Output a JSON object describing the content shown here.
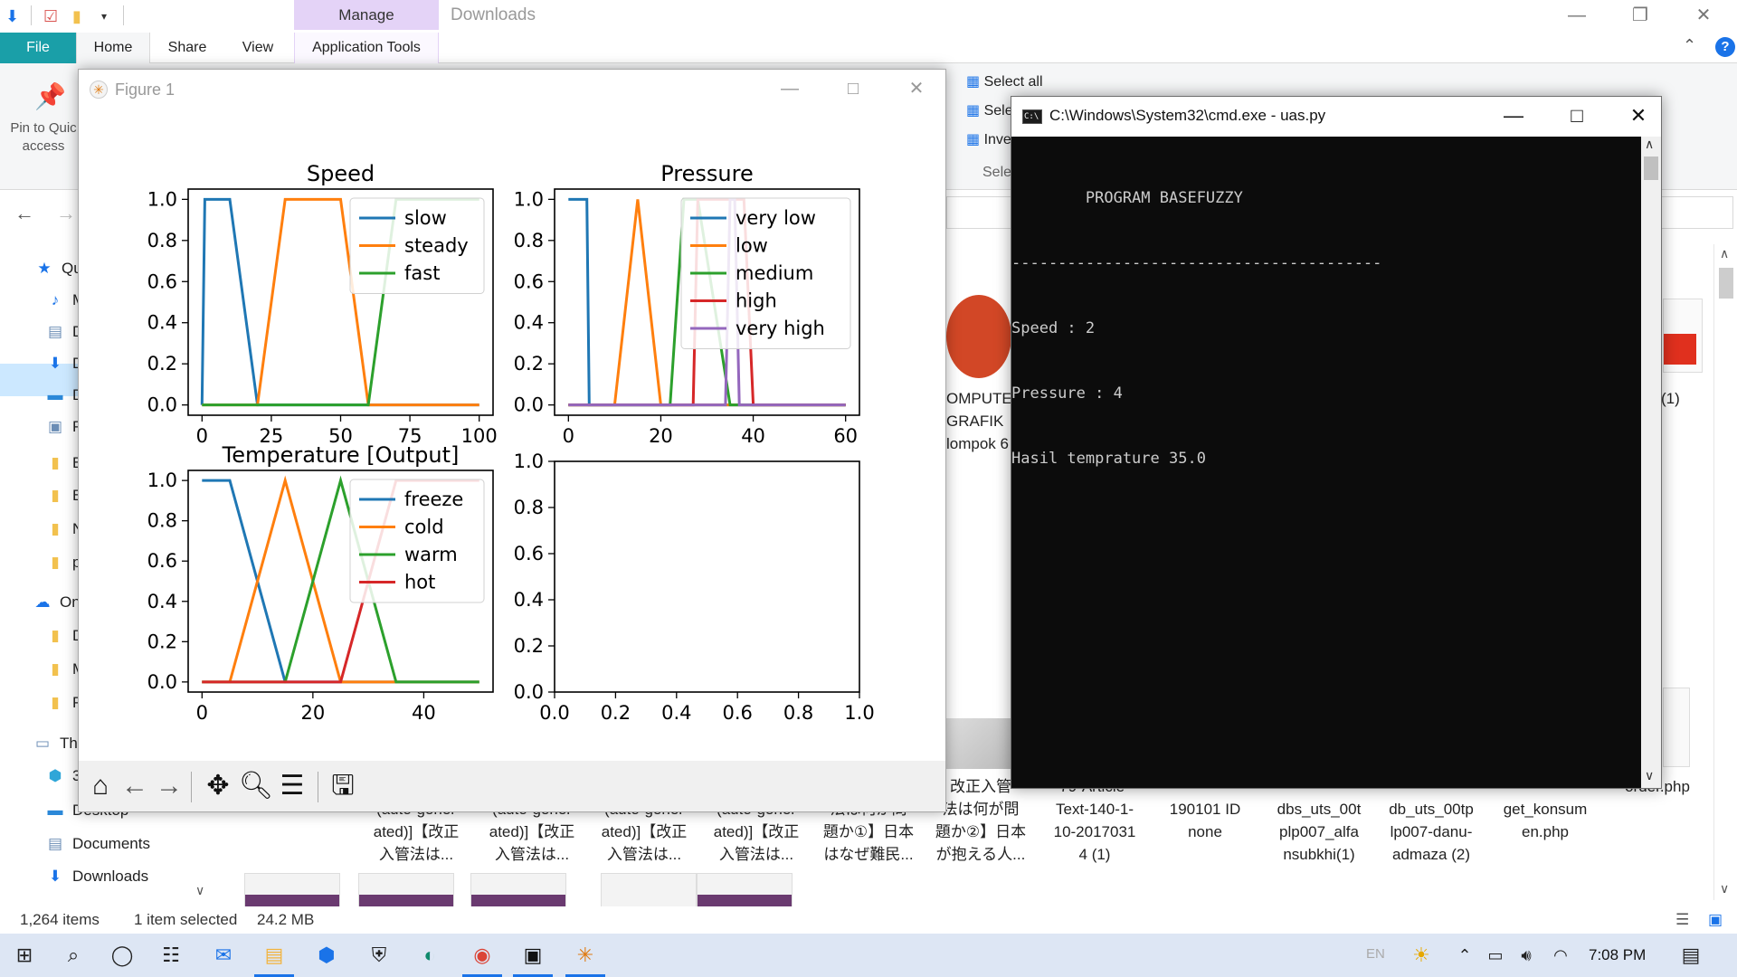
{
  "explorer": {
    "title": "Downloads",
    "manage_tab": "Manage",
    "tabs": [
      "File",
      "Home",
      "Share",
      "View",
      "Application Tools"
    ],
    "pin_label": "Pin to Quick access",
    "pin_line1": "Pin to Quic",
    "pin_line2": "access",
    "select_items": [
      "Select all",
      "Select n",
      "Invert s",
      "Selec"
    ],
    "nav_items": [
      {
        "icon": "star-icon",
        "label": "Qu"
      },
      {
        "icon": "music-icon",
        "label": "M"
      },
      {
        "icon": "document-icon",
        "label": "D"
      },
      {
        "icon": "download-icon",
        "label": "D"
      },
      {
        "icon": "desktop-icon",
        "label": "D"
      },
      {
        "icon": "picture-icon",
        "label": "P"
      },
      {
        "icon": "folder-icon",
        "label": "B"
      },
      {
        "icon": "folder-icon",
        "label": "B"
      },
      {
        "icon": "folder-icon",
        "label": "N"
      },
      {
        "icon": "folder-icon",
        "label": "p"
      },
      {
        "icon": "cloud-icon",
        "label": "On"
      },
      {
        "icon": "folder-icon",
        "label": "D"
      },
      {
        "icon": "folder-icon",
        "label": "M"
      },
      {
        "icon": "folder-icon",
        "label": "P"
      },
      {
        "icon": "computer-icon",
        "label": "Thi"
      },
      {
        "icon": "cube-icon",
        "label": "3"
      },
      {
        "icon": "desktop-icon",
        "label": "Desktop"
      },
      {
        "icon": "document-icon",
        "label": "Documents"
      },
      {
        "icon": "download-icon",
        "label": "Downloads"
      }
    ],
    "files_top": [
      {
        "lines": [
          "OMPUTER",
          "GRAFIK",
          "lompok 6"
        ]
      },
      {
        "lines": [
          "(1)"
        ]
      }
    ],
    "files_bottom": [
      {
        "lines": [
          "(auto-gener",
          "ated)]【改正",
          "入管法は..."
        ]
      },
      {
        "lines": [
          "(auto-gener",
          "ated)]【改正",
          "入管法は..."
        ]
      },
      {
        "lines": [
          "(auto-gener",
          "ated)]【改正",
          "入管法は..."
        ]
      },
      {
        "lines": [
          "(auto-gener",
          "ated)]【改正",
          "入管法は..."
        ]
      },
      {
        "lines": [
          "法は何が問",
          "題か①】日本",
          "はなぜ難民..."
        ]
      },
      {
        "lines": [
          "改正入管",
          "法は何が問",
          "題か②】日本",
          "が抱える人..."
        ]
      },
      {
        "lines": [
          "79-Article-",
          "Text-140-1-",
          "10-2017031",
          "4 (1)"
        ]
      },
      {
        "lines": [
          "190101 ID",
          "none"
        ]
      },
      {
        "lines": [
          "dbs_uts_00t",
          "plp007_alfa",
          "nsubkhi(1)"
        ]
      },
      {
        "lines": [
          "db_uts_00tp",
          "lp007-danu-",
          "admaza (2)"
        ]
      },
      {
        "lines": [
          "get_konsum",
          "en.php"
        ]
      },
      {
        "lines": [
          "order.php"
        ]
      }
    ],
    "status": {
      "items": "1,264 items",
      "selected": "1 item selected",
      "size": "24.2 MB"
    }
  },
  "figure": {
    "window_title": "Figure 1",
    "toolbar": [
      "home-icon",
      "back-icon",
      "forward-icon",
      "pan-icon",
      "zoom-icon",
      "configure-icon",
      "save-icon"
    ]
  },
  "chart_data": [
    {
      "type": "line",
      "title": "Speed",
      "xlim": [
        -5,
        105
      ],
      "ylim": [
        -0.05,
        1.05
      ],
      "xticks": [
        0,
        25,
        50,
        75,
        100
      ],
      "yticks": [
        0.0,
        0.2,
        0.4,
        0.6,
        0.8,
        1.0
      ],
      "legend_loc": "upper-right",
      "series": [
        {
          "name": "slow",
          "color": "#1f77b4",
          "x": [
            0,
            1,
            10,
            20,
            100
          ],
          "y": [
            0,
            1,
            1,
            0,
            0
          ]
        },
        {
          "name": "steady",
          "color": "#ff7f0e",
          "x": [
            0,
            10,
            20,
            30,
            40,
            50,
            60,
            100
          ],
          "y": [
            0,
            0,
            0,
            1,
            1,
            1,
            0,
            0
          ]
        },
        {
          "name": "fast",
          "color": "#2ca02c",
          "x": [
            0,
            30,
            40,
            50,
            60,
            70,
            80,
            100
          ],
          "y": [
            0,
            0,
            0,
            0,
            0,
            1,
            1,
            1
          ]
        }
      ]
    },
    {
      "type": "line",
      "title": "Pressure",
      "xlim": [
        -3,
        63
      ],
      "ylim": [
        -0.05,
        1.05
      ],
      "xticks": [
        0,
        20,
        40,
        60
      ],
      "yticks": [
        0.0,
        0.2,
        0.4,
        0.6,
        0.8,
        1.0
      ],
      "legend_loc": "upper-right",
      "series": [
        {
          "name": "very low",
          "color": "#1f77b4",
          "x": [
            0,
            4,
            4.5,
            15,
            60
          ],
          "y": [
            1,
            1,
            0,
            0,
            0
          ]
        },
        {
          "name": "low",
          "color": "#ff7f0e",
          "x": [
            0,
            10,
            15,
            20,
            60
          ],
          "y": [
            0,
            0,
            1,
            0,
            0
          ]
        },
        {
          "name": "medium",
          "color": "#2ca02c",
          "x": [
            0,
            4,
            15,
            22,
            25,
            28,
            35,
            60
          ],
          "y": [
            0,
            0,
            0,
            0,
            1,
            1,
            0,
            0
          ]
        },
        {
          "name": "high",
          "color": "#d62728",
          "x": [
            0,
            27,
            28,
            38,
            40,
            60
          ],
          "y": [
            0,
            0,
            1,
            1,
            0,
            0
          ]
        },
        {
          "name": "very high",
          "color": "#9467bd",
          "x": [
            0,
            34,
            35,
            36,
            37,
            60
          ],
          "y": [
            0,
            0,
            1,
            1,
            0,
            0
          ]
        }
      ]
    },
    {
      "type": "line",
      "title": "Temperature [Output]",
      "xlim": [
        -2.5,
        52.5
      ],
      "ylim": [
        -0.05,
        1.05
      ],
      "xticks": [
        0,
        20,
        40
      ],
      "yticks": [
        0.0,
        0.2,
        0.4,
        0.6,
        0.8,
        1.0
      ],
      "legend_loc": "upper-right",
      "series": [
        {
          "name": "freeze",
          "color": "#1f77b4",
          "x": [
            0,
            5,
            15,
            50
          ],
          "y": [
            1,
            1,
            0,
            0
          ]
        },
        {
          "name": "cold",
          "color": "#ff7f0e",
          "x": [
            0,
            5,
            15,
            25,
            50
          ],
          "y": [
            0,
            0,
            1,
            0,
            0
          ]
        },
        {
          "name": "warm",
          "color": "#2ca02c",
          "x": [
            0,
            15,
            25,
            35,
            50
          ],
          "y": [
            0,
            0,
            1,
            0,
            0
          ]
        },
        {
          "name": "hot",
          "color": "#d62728",
          "x": [
            0,
            25,
            35,
            50
          ],
          "y": [
            0,
            0,
            1,
            1
          ]
        }
      ]
    },
    {
      "type": "line",
      "title": "",
      "xlim": [
        0,
        1
      ],
      "ylim": [
        0,
        1
      ],
      "xticks": [
        0.0,
        0.2,
        0.4,
        0.6,
        0.8,
        1.0
      ],
      "yticks": [
        0.0,
        0.2,
        0.4,
        0.6,
        0.8,
        1.0
      ],
      "series": []
    }
  ],
  "cmd": {
    "title": "C:\\Windows\\System32\\cmd.exe - uas.py",
    "icon_text": "C:\\",
    "lines": [
      "        PROGRAM BASEFUZZY",
      "----------------------------------------",
      "Speed : 2",
      "Pressure : 4",
      "Hasil temprature 35.0"
    ]
  },
  "taskbar": {
    "icons": [
      "windows-start-icon",
      "search-icon",
      "cortana-icon",
      "task-view-icon",
      "mail-icon",
      "file-explorer-icon",
      "app-icon",
      "security-icon",
      "edge-icon",
      "chrome-icon",
      "terminal-icon",
      "python-figure-icon"
    ],
    "lang": "EN",
    "time": "7:08 PM"
  }
}
